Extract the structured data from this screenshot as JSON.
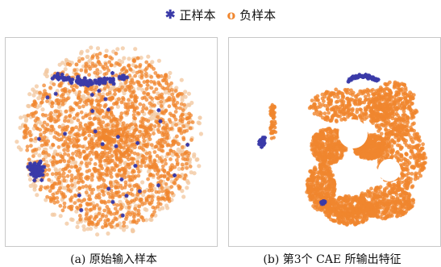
{
  "colors": {
    "positive": "#3a3aa8",
    "negative": "#f0862e",
    "negative_light": "#f2c9a2",
    "frame": "#c8c8c8"
  },
  "legend": [
    {
      "symbol": "✱",
      "label": "正样本",
      "series": "positive"
    },
    {
      "symbol": "o",
      "label": "负样本",
      "series": "negative"
    }
  ],
  "chart_data": [
    {
      "type": "scatter",
      "title": "(a) 原始输入样本",
      "legend_position": "top-center",
      "series": [
        {
          "name": "正样本",
          "marker": "asterisk",
          "clusters": [
            "upper-left band",
            "left-lower edge",
            "scattered inside"
          ]
        },
        {
          "name": "负样本",
          "marker": "circle",
          "clusters": [
            "large round cloud"
          ]
        }
      ]
    },
    {
      "type": "scatter",
      "title": "(b) 第3个 CAE 所输出特征",
      "legend_position": "top-center",
      "series": [
        {
          "name": "正样本",
          "marker": "asterisk",
          "clusters": [
            "top arc",
            "left small cluster",
            "bottom-left small cluster"
          ]
        },
        {
          "name": "负样本",
          "marker": "circle",
          "clusters": [
            "large ring structure",
            "small left filament"
          ]
        }
      ]
    }
  ]
}
